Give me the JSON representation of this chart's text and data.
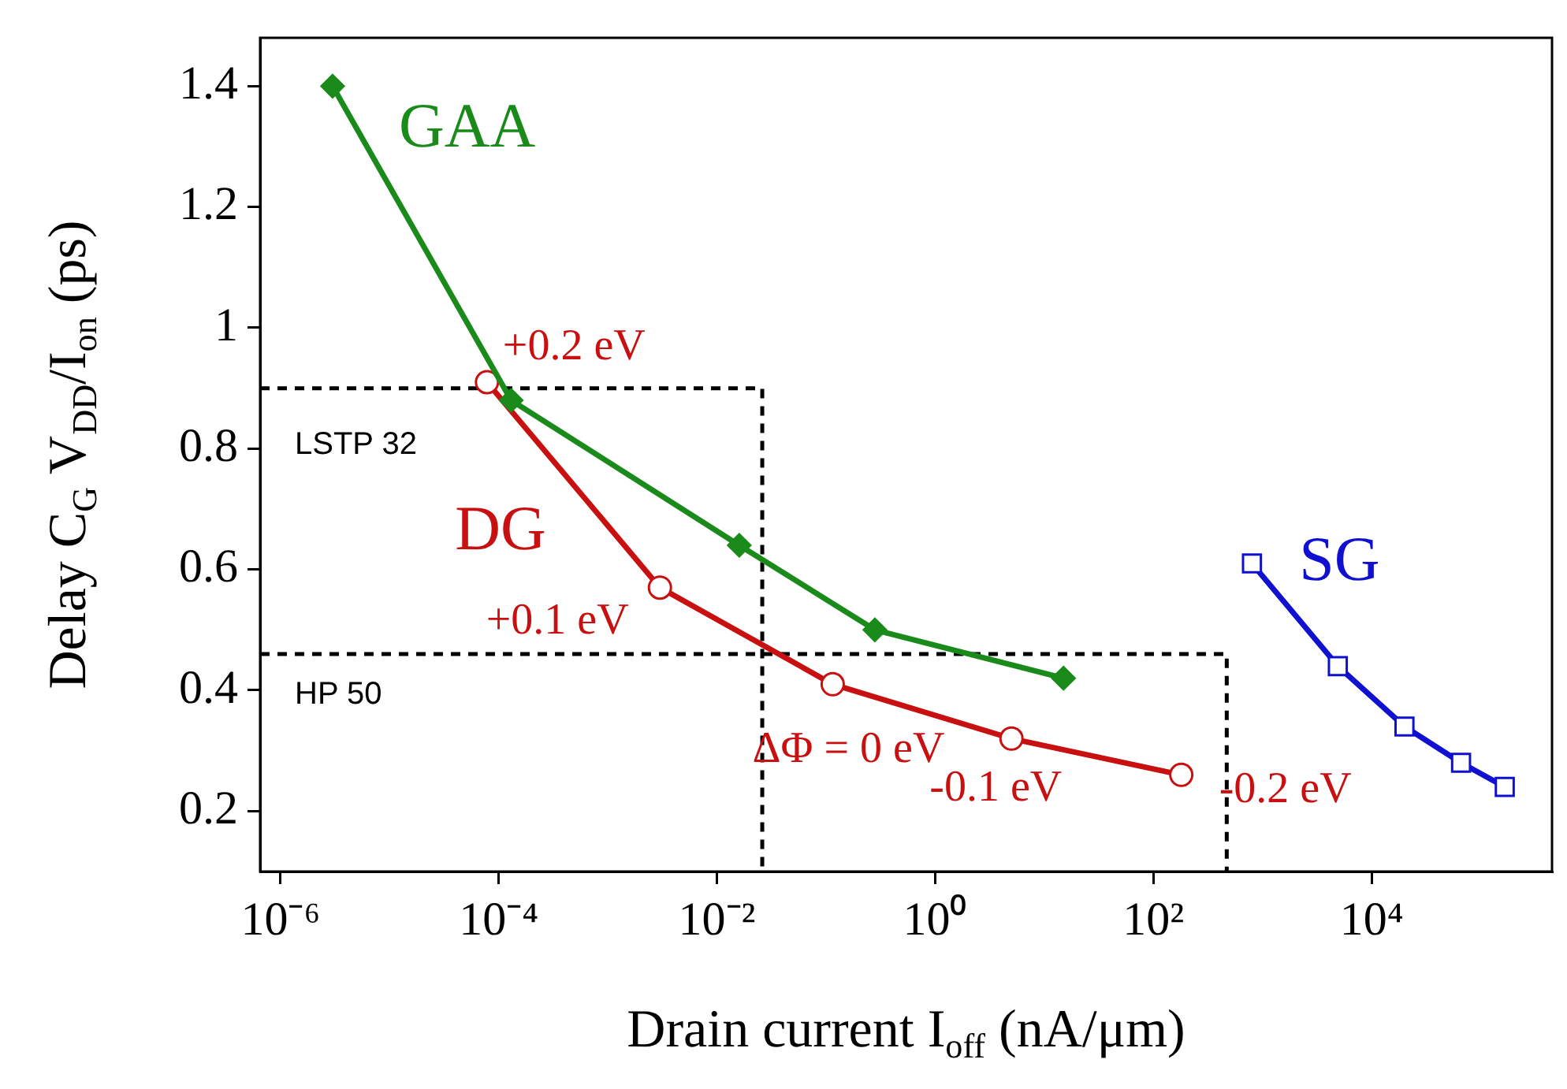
{
  "chart_data": {
    "type": "line",
    "xlabel": "Drain current I$_{off}$ (nA/μm)",
    "ylabel": "Delay C$_{G}$ V$_{DD}$/I$_{on}$ (ps)",
    "log": "x",
    "grid": false,
    "legend": false,
    "xlim": [
      6.5e-07,
      450000
    ],
    "ylim": [
      0.1,
      1.48
    ],
    "xticks": [
      {
        "value": 1e-06,
        "label": "10⁻⁶"
      },
      {
        "value": 0.0001,
        "label": "10⁻⁴"
      },
      {
        "value": 0.01,
        "label": "10⁻²"
      },
      {
        "value": 1,
        "label": "10⁰"
      },
      {
        "value": 100,
        "label": "10²"
      },
      {
        "value": 10000,
        "label": "10⁴"
      }
    ],
    "yticks": [
      0.2,
      0.4,
      0.6,
      0.8,
      1,
      1.2,
      1.4
    ],
    "series": [
      {
        "name": "GAA",
        "color": "#1a8a1a",
        "marker": "diamond",
        "line_style": "solid",
        "x": [
          3e-06,
          0.00013,
          0.016,
          0.28,
          15
        ],
        "values": [
          1.4,
          0.88,
          0.64,
          0.5,
          0.42
        ]
      },
      {
        "name": "DG",
        "color": "#c81010",
        "marker": "circle",
        "line_style": "solid",
        "x": [
          7.8e-05,
          0.003,
          0.115,
          5,
          180
        ],
        "values": [
          0.91,
          0.57,
          0.41,
          0.32,
          0.26
        ]
      },
      {
        "name": "SG",
        "color": "#1010d0",
        "marker": "square",
        "line_style": "solid",
        "x": [
          800,
          4900,
          20000,
          66000,
          166000
        ],
        "values": [
          0.61,
          0.44,
          0.34,
          0.28,
          0.24
        ]
      },
      {
        "name": "LSTP 32",
        "color": "#000000",
        "marker": "none",
        "line_style": "dashed",
        "x": [
          6.5e-07,
          0.026,
          0.026
        ],
        "values": [
          0.9,
          0.9,
          0.1
        ]
      },
      {
        "name": "HP 50",
        "color": "#000000",
        "marker": "none",
        "line_style": "dashed",
        "x": [
          6.5e-07,
          470,
          470
        ],
        "values": [
          0.46,
          0.46,
          0.1
        ]
      }
    ],
    "annotations": [
      {
        "text": "+0.2 eV",
        "x": 7.8e-05,
        "y": 0.91
      },
      {
        "text": "+0.1 eV",
        "x": 0.003,
        "y": 0.57
      },
      {
        "text": "ΔΦ = 0 eV",
        "x": 0.115,
        "y": 0.41
      },
      {
        "text": "-0.1 eV",
        "x": 5,
        "y": 0.32
      },
      {
        "text": "-0.2 eV",
        "x": 180,
        "y": 0.26
      }
    ]
  }
}
